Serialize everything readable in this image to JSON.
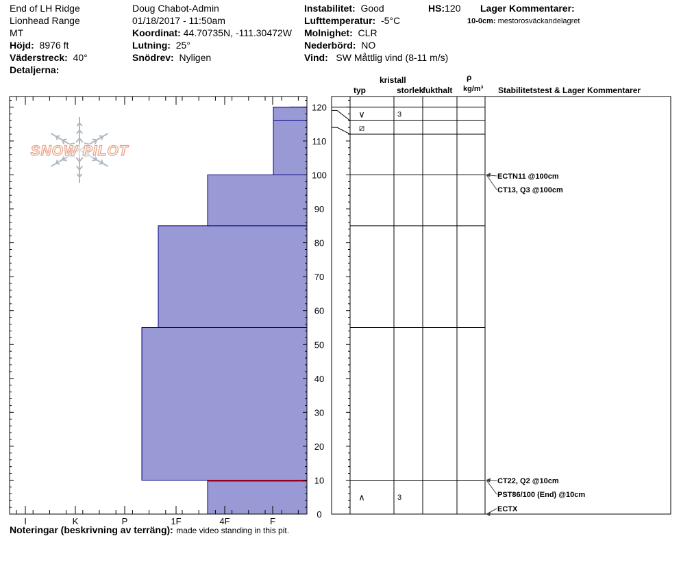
{
  "header": {
    "location": "End of LH Ridge",
    "range": "Lionhead Range",
    "state": "MT",
    "elevation_label": "Höjd:",
    "elevation_value": "8976 ft",
    "aspect_label": "Väderstreck:",
    "aspect_value": "40°",
    "details_label": "Detaljerna:",
    "observer": "Doug Chabot-Admin",
    "datetime": "01/18/2017 - 11:50am",
    "coord_label": "Koordinat:",
    "coord_value": "44.70735N, -111.30472W",
    "slope_label": "Lutning:",
    "slope_value": "25°",
    "drift_label": "Snödrev:",
    "drift_value": "Nyligen",
    "instability_label": "Instabilitet:",
    "instability_value": "Good",
    "airtemp_label": "Lufttemperatur:",
    "airtemp_value": "-5°C",
    "sky_label": "Molnighet:",
    "sky_value": "CLR",
    "precip_label": "Nederbörd:",
    "precip_value": "NO",
    "wind_label": "Vind:",
    "wind_value": "SW  Måttlig vind (8-11 m/s)",
    "hs_label": "HS:",
    "hs_value": "120",
    "layer_comments_title": "Lager Kommentarer:",
    "layer_comment_depth": "10-0cm:",
    "layer_comment_text": "mestorosväckandelagret"
  },
  "logo": {
    "text": "SNOW PILOT"
  },
  "table_headers": {
    "crystal": "kristall",
    "type": "typ",
    "size": "storlek",
    "moisture": "fukthalt",
    "rho": "ρ",
    "density_unit": "kg/m³",
    "stability": "Stabilitetstest & Lager Kommentarer"
  },
  "footer": {
    "notes_label": "Noteringar (beskrivning av terräng):",
    "notes_text": "made video standing in this pit."
  },
  "colors": {
    "fill": "#9999d6",
    "outline": "#000080",
    "red_line": "#cc0000",
    "logo": "#e8a488"
  },
  "chart_data": {
    "type": "snow-profile",
    "hardness_scale": [
      "I",
      "K",
      "P",
      "1F",
      "4F",
      "F"
    ],
    "depth_ticks": [
      0,
      10,
      20,
      30,
      40,
      50,
      60,
      70,
      80,
      90,
      100,
      110,
      120
    ],
    "depth_range_cm": [
      0,
      123
    ],
    "total_depth_cm": 120,
    "layers": [
      {
        "top": 10,
        "bottom": 0,
        "hardness": "4F"
      },
      {
        "top": 55,
        "bottom": 10,
        "hardness": "P-"
      },
      {
        "top": 85,
        "bottom": 55,
        "hardness": "P"
      },
      {
        "top": 100,
        "bottom": 85,
        "hardness": "1F"
      },
      {
        "top": 120,
        "bottom": 100,
        "hardness": "4F+"
      }
    ],
    "table_boundaries": [
      120,
      116,
      112,
      100,
      85,
      55,
      10
    ],
    "crystals": [
      {
        "depth": 118,
        "symbol": "∨",
        "size": "3"
      },
      {
        "depth": 114,
        "symbol": "⧄",
        "size": ""
      },
      {
        "depth": 5,
        "symbol": "∧",
        "size": "3"
      }
    ],
    "tests": [
      {
        "depth": 100,
        "text": "ECTN11 @100cm"
      },
      {
        "depth": 100,
        "text": "CT13, Q3 @100cm"
      },
      {
        "depth": 10,
        "text": "CT22, Q2 @10cm"
      },
      {
        "depth": 10,
        "text": "PST86/100 (End) @10cm"
      },
      {
        "depth": 0,
        "text": "ECTX"
      }
    ],
    "red_line_depth": 10
  }
}
